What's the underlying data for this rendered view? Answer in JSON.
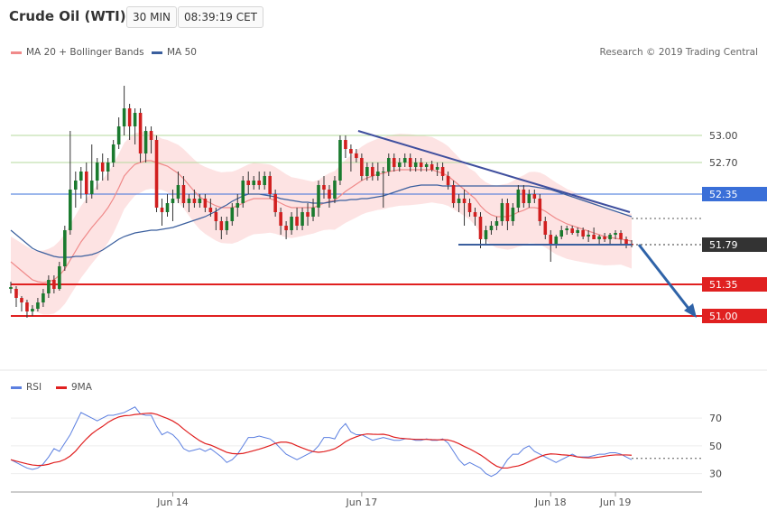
{
  "header": {
    "title": "Crude Oil (WTI)",
    "timeframe": "30 MIN",
    "time": "08:39:19 CET"
  },
  "legend": {
    "ma20": {
      "label": "MA 20 + Bollinger Bands",
      "color": "#f08a8a"
    },
    "ma50": {
      "label": "MA 50",
      "color": "#3b5f9e"
    }
  },
  "copyright": "Research © 2019 Trading Central",
  "rsi_legend": {
    "rsi": {
      "label": "RSI",
      "color": "#5b7fe0"
    },
    "ma9": {
      "label": "9MA",
      "color": "#e02020"
    }
  },
  "levels": [
    {
      "value": 53.0,
      "label": "53.00",
      "kind": "resistance-green"
    },
    {
      "value": 52.7,
      "label": "52.70",
      "kind": "resistance-green"
    },
    {
      "value": 52.35,
      "label": "52.35",
      "kind": "pivot-blue"
    },
    {
      "value": 51.79,
      "label": "51.79",
      "kind": "current"
    },
    {
      "value": 51.35,
      "label": "51.35",
      "kind": "support-red"
    },
    {
      "value": 51.0,
      "label": "51.00",
      "kind": "support-red"
    }
  ],
  "chart_data": {
    "type": "candlestick",
    "price_range": [
      50.5,
      53.7
    ],
    "x_labels": [
      "Jun 14",
      "Jun 17",
      "Jun 18",
      "Jun 19"
    ],
    "candles": [
      [
        51.3,
        51.38,
        51.25,
        51.32
      ],
      [
        51.3,
        51.33,
        51.1,
        51.2
      ],
      [
        51.2,
        51.22,
        51.05,
        51.15
      ],
      [
        51.15,
        51.18,
        50.98,
        51.05
      ],
      [
        51.05,
        51.12,
        51.0,
        51.08
      ],
      [
        51.08,
        51.2,
        51.05,
        51.15
      ],
      [
        51.15,
        51.3,
        51.1,
        51.25
      ],
      [
        51.25,
        51.45,
        51.2,
        51.4
      ],
      [
        51.4,
        51.45,
        51.25,
        51.3
      ],
      [
        51.3,
        51.6,
        51.28,
        51.55
      ],
      [
        51.55,
        52.0,
        51.5,
        51.95
      ],
      [
        51.95,
        53.05,
        51.9,
        52.4
      ],
      [
        52.4,
        52.6,
        52.2,
        52.5
      ],
      [
        52.5,
        52.65,
        52.3,
        52.6
      ],
      [
        52.6,
        52.7,
        52.25,
        52.35
      ],
      [
        52.35,
        52.9,
        52.3,
        52.5
      ],
      [
        52.5,
        52.75,
        52.4,
        52.7
      ],
      [
        52.7,
        52.8,
        52.5,
        52.6
      ],
      [
        52.6,
        52.75,
        52.5,
        52.7
      ],
      [
        52.7,
        52.95,
        52.65,
        52.9
      ],
      [
        52.9,
        53.2,
        52.85,
        53.1
      ],
      [
        53.1,
        53.55,
        53.0,
        53.3
      ],
      [
        53.3,
        53.35,
        52.95,
        53.1
      ],
      [
        53.1,
        53.3,
        52.9,
        53.25
      ],
      [
        53.25,
        53.3,
        52.7,
        52.8
      ],
      [
        52.8,
        53.1,
        52.7,
        53.05
      ],
      [
        53.05,
        53.1,
        52.8,
        52.95
      ],
      [
        52.95,
        53.0,
        52.15,
        52.2
      ],
      [
        52.2,
        52.3,
        52.0,
        52.15
      ],
      [
        52.15,
        52.35,
        52.1,
        52.25
      ],
      [
        52.25,
        52.4,
        52.05,
        52.3
      ],
      [
        52.3,
        52.6,
        52.25,
        52.45
      ],
      [
        52.45,
        52.55,
        52.2,
        52.25
      ],
      [
        52.25,
        52.35,
        52.15,
        52.3
      ],
      [
        52.3,
        52.4,
        52.2,
        52.25
      ],
      [
        52.25,
        52.35,
        52.2,
        52.3
      ],
      [
        52.3,
        52.35,
        52.15,
        52.2
      ],
      [
        52.2,
        52.3,
        52.1,
        52.15
      ],
      [
        52.15,
        52.2,
        51.95,
        52.05
      ],
      [
        52.05,
        52.1,
        51.85,
        51.95
      ],
      [
        51.95,
        52.1,
        51.9,
        52.05
      ],
      [
        52.05,
        52.25,
        52.0,
        52.2
      ],
      [
        52.2,
        52.35,
        52.1,
        52.25
      ],
      [
        52.25,
        52.55,
        52.2,
        52.5
      ],
      [
        52.5,
        52.6,
        52.35,
        52.45
      ],
      [
        52.45,
        52.55,
        52.4,
        52.5
      ],
      [
        52.5,
        52.6,
        52.4,
        52.45
      ],
      [
        52.45,
        52.6,
        52.4,
        52.55
      ],
      [
        52.55,
        52.6,
        52.3,
        52.35
      ],
      [
        52.35,
        52.4,
        52.1,
        52.15
      ],
      [
        52.15,
        52.2,
        51.9,
        52.0
      ],
      [
        52.0,
        52.05,
        51.85,
        51.95
      ],
      [
        51.95,
        52.15,
        51.9,
        52.1
      ],
      [
        52.1,
        52.2,
        51.95,
        52.0
      ],
      [
        52.0,
        52.2,
        51.95,
        52.15
      ],
      [
        52.15,
        52.25,
        52.0,
        52.1
      ],
      [
        52.1,
        52.3,
        52.05,
        52.2
      ],
      [
        52.2,
        52.5,
        52.1,
        52.45
      ],
      [
        52.45,
        52.55,
        52.3,
        52.4
      ],
      [
        52.4,
        52.45,
        52.2,
        52.3
      ],
      [
        52.3,
        52.55,
        52.25,
        52.5
      ],
      [
        52.5,
        53.0,
        52.45,
        52.95
      ],
      [
        52.95,
        53.0,
        52.75,
        52.85
      ],
      [
        52.85,
        52.9,
        52.6,
        52.8
      ],
      [
        52.8,
        52.85,
        52.7,
        52.75
      ],
      [
        52.75,
        52.8,
        52.5,
        52.55
      ],
      [
        52.55,
        52.7,
        52.5,
        52.65
      ],
      [
        52.65,
        52.7,
        52.5,
        52.55
      ],
      [
        52.55,
        52.7,
        52.5,
        52.6
      ],
      [
        52.6,
        52.65,
        52.2,
        52.6
      ],
      [
        52.6,
        52.8,
        52.55,
        52.75
      ],
      [
        52.75,
        52.8,
        52.6,
        52.65
      ],
      [
        52.65,
        52.75,
        52.6,
        52.7
      ],
      [
        52.7,
        52.8,
        52.65,
        52.75
      ],
      [
        52.75,
        52.8,
        52.6,
        52.65
      ],
      [
        52.65,
        52.75,
        52.6,
        52.7
      ],
      [
        52.7,
        52.75,
        52.6,
        52.65
      ],
      [
        52.65,
        52.7,
        52.6,
        52.68
      ],
      [
        52.68,
        52.72,
        52.6,
        52.62
      ],
      [
        52.62,
        52.7,
        52.55,
        52.65
      ],
      [
        52.65,
        52.7,
        52.5,
        52.55
      ],
      [
        52.55,
        52.6,
        52.4,
        52.45
      ],
      [
        52.45,
        52.5,
        52.2,
        52.25
      ],
      [
        52.25,
        52.35,
        52.15,
        52.3
      ],
      [
        52.3,
        52.4,
        52.0,
        52.25
      ],
      [
        52.25,
        52.3,
        52.1,
        52.15
      ],
      [
        52.15,
        52.2,
        52.0,
        52.1
      ],
      [
        52.1,
        52.15,
        51.75,
        51.85
      ],
      [
        51.85,
        52.0,
        51.8,
        51.95
      ],
      [
        51.95,
        52.05,
        51.9,
        52.0
      ],
      [
        52.0,
        52.1,
        51.95,
        52.05
      ],
      [
        52.05,
        52.3,
        52.0,
        52.25
      ],
      [
        52.25,
        52.3,
        51.95,
        52.05
      ],
      [
        52.05,
        52.25,
        52.0,
        52.2
      ],
      [
        52.2,
        52.45,
        52.15,
        52.4
      ],
      [
        52.4,
        52.45,
        52.2,
        52.25
      ],
      [
        52.25,
        52.4,
        52.2,
        52.35
      ],
      [
        52.35,
        52.4,
        52.25,
        52.3
      ],
      [
        52.3,
        52.35,
        52.0,
        52.05
      ],
      [
        52.05,
        52.1,
        51.85,
        51.9
      ],
      [
        51.9,
        51.95,
        51.6,
        51.8
      ],
      [
        51.8,
        51.9,
        51.75,
        51.88
      ],
      [
        51.88,
        52.0,
        51.85,
        51.95
      ],
      [
        51.95,
        52.0,
        51.9,
        51.97
      ],
      [
        51.97,
        52.0,
        51.9,
        51.92
      ],
      [
        51.92,
        51.98,
        51.88,
        51.95
      ],
      [
        51.95,
        51.98,
        51.85,
        51.88
      ],
      [
        51.88,
        51.95,
        51.82,
        51.9
      ],
      [
        51.9,
        51.98,
        51.85,
        51.85
      ],
      [
        51.85,
        51.9,
        51.8,
        51.88
      ],
      [
        51.88,
        51.92,
        51.82,
        51.85
      ],
      [
        51.85,
        51.92,
        51.8,
        51.9
      ],
      [
        51.9,
        51.95,
        51.85,
        51.92
      ],
      [
        51.92,
        51.95,
        51.8,
        51.85
      ],
      [
        51.85,
        51.88,
        51.75,
        51.8
      ],
      [
        51.8,
        51.84,
        51.76,
        51.79
      ]
    ],
    "ma20": [
      51.6,
      51.55,
      51.5,
      51.45,
      51.4,
      51.38,
      51.37,
      51.38,
      51.4,
      51.45,
      51.52,
      51.62,
      51.72,
      51.82,
      51.9,
      51.98,
      52.05,
      52.12,
      52.2,
      52.3,
      52.42,
      52.55,
      52.62,
      52.68,
      52.7,
      52.72,
      52.72,
      52.7,
      52.68,
      52.66,
      52.62,
      52.58,
      52.52,
      52.45,
      52.38,
      52.32,
      52.28,
      52.25,
      52.22,
      52.2,
      52.2,
      52.2,
      52.22,
      52.25,
      52.28,
      52.3,
      52.3,
      52.3,
      52.3,
      52.28,
      52.25,
      52.22,
      52.2,
      52.2,
      52.2,
      52.2,
      52.2,
      52.22,
      52.25,
      52.27,
      52.28,
      52.33,
      52.38,
      52.42,
      52.46,
      52.5,
      52.53,
      52.55,
      52.57,
      52.58,
      52.6,
      52.61,
      52.62,
      52.62,
      52.62,
      52.62,
      52.62,
      52.62,
      52.62,
      52.6,
      52.58,
      52.55,
      52.5,
      52.45,
      52.4,
      52.35,
      52.3,
      52.22,
      52.16,
      52.12,
      52.1,
      52.1,
      52.1,
      52.12,
      52.15,
      52.17,
      52.2,
      52.2,
      52.19,
      52.16,
      52.12,
      52.08,
      52.05,
      52.02,
      52.0,
      51.98,
      51.96,
      51.94,
      51.92,
      51.9,
      51.88,
      51.87,
      51.86,
      51.85,
      51.84,
      51.83
    ],
    "ma50": [
      51.95,
      51.9,
      51.85,
      51.8,
      51.75,
      51.72,
      51.7,
      51.68,
      51.66,
      51.65,
      51.65,
      51.65,
      51.66,
      51.66,
      51.67,
      51.68,
      51.7,
      51.73,
      51.77,
      51.81,
      51.85,
      51.88,
      51.9,
      51.92,
      51.93,
      51.94,
      51.95,
      51.95,
      51.96,
      51.97,
      51.98,
      52.0,
      52.02,
      52.04,
      52.06,
      52.08,
      52.1,
      52.13,
      52.16,
      52.2,
      52.23,
      52.27,
      52.3,
      52.33,
      52.35,
      52.35,
      52.35,
      52.34,
      52.33,
      52.32,
      52.3,
      52.29,
      52.28,
      52.27,
      52.26,
      52.26,
      52.25,
      52.25,
      52.25,
      52.26,
      52.27,
      52.28,
      52.28,
      52.29,
      52.29,
      52.3,
      52.3,
      52.31,
      52.32,
      52.33,
      52.35,
      52.37,
      52.39,
      52.41,
      52.43,
      52.44,
      52.45,
      52.45,
      52.45,
      52.45,
      52.44,
      52.44,
      52.44,
      52.44,
      52.44,
      52.44,
      52.44,
      52.44,
      52.44,
      52.44,
      52.44,
      52.44,
      52.44,
      52.44,
      52.44,
      52.44,
      52.44,
      52.43,
      52.42,
      52.41,
      52.4,
      52.38,
      52.36,
      52.34,
      52.32,
      52.3,
      52.28,
      52.26,
      52.24,
      52.22,
      52.2,
      52.18,
      52.16,
      52.14,
      52.12,
      52.1
    ],
    "rsi": [
      40,
      38,
      36,
      34,
      33,
      34,
      37,
      42,
      48,
      46,
      52,
      58,
      66,
      74,
      72,
      70,
      68,
      70,
      72,
      72,
      73,
      74,
      76,
      78,
      73,
      72,
      72,
      64,
      58,
      60,
      58,
      54,
      48,
      46,
      47,
      48,
      46,
      48,
      45,
      42,
      38,
      40,
      44,
      50,
      56,
      56,
      57,
      56,
      55,
      52,
      48,
      44,
      42,
      40,
      42,
      44,
      46,
      50,
      56,
      56,
      55,
      62,
      66,
      60,
      58,
      58,
      56,
      54,
      55,
      56,
      55,
      54,
      54,
      55,
      55,
      54,
      54,
      55,
      54,
      54,
      55,
      52,
      46,
      40,
      36,
      38,
      36,
      34,
      30,
      28,
      30,
      34,
      40,
      44,
      44,
      48,
      50,
      46,
      44,
      42,
      40,
      38,
      40,
      42,
      44,
      42,
      42,
      42,
      43,
      44,
      44,
      45,
      45,
      44,
      42,
      40
    ],
    "rsi_levels": [
      70,
      50,
      30
    ],
    "rsi_range": [
      20,
      85
    ]
  }
}
